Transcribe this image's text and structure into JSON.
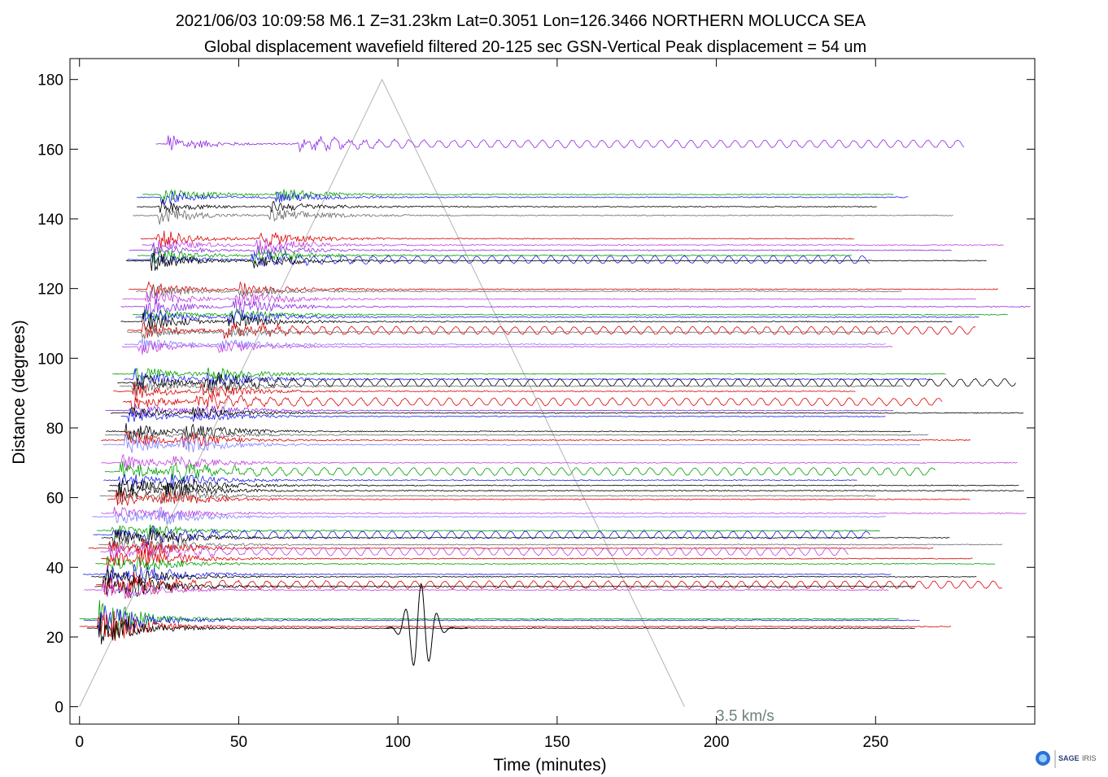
{
  "chart_data": {
    "type": "line",
    "title": "2021/06/03  10:09:58  M6.1  Z=31.23km  Lat=0.3051 Lon=126.3466  NORTHERN MOLUCCA SEA",
    "subtitle": "Global displacement wavefield     filtered 20-125 sec    GSN-Vertical    Peak displacement =  54 um",
    "xlabel": "Time (minutes)",
    "ylabel": "Distance (degrees)",
    "xlim": [
      -3,
      300
    ],
    "ylim": [
      -5,
      186
    ],
    "x_ticks": [
      0,
      50,
      100,
      150,
      200,
      250
    ],
    "y_ticks": [
      0,
      20,
      40,
      60,
      80,
      100,
      120,
      140,
      160,
      180
    ],
    "x_tick_labels": [
      "0",
      "50",
      "100",
      "150",
      "200",
      "250"
    ],
    "y_tick_labels": [
      "0",
      "20",
      "40",
      "60",
      "80",
      "100",
      "120",
      "140",
      "160",
      "180"
    ],
    "grid": false,
    "annotation": {
      "text": "3.5 km/s",
      "x": 200,
      "y": -2,
      "color": "#708080"
    },
    "reference_line": {
      "name": "3.5 km/s",
      "points": [
        [
          0,
          0
        ],
        [
          95,
          180
        ],
        [
          190,
          0
        ]
      ],
      "color": "#b4b4b4"
    },
    "trace_colors": [
      "#8a2be2",
      "#00a000",
      "#000000",
      "#696969",
      "#dd0000",
      "#1f1fee",
      "#c040e0",
      "#8080ff"
    ],
    "traces": [
      {
        "distance": 161.5,
        "color": "#8a2be2"
      },
      {
        "distance": 147.0,
        "color": "#00a000"
      },
      {
        "distance": 146.2,
        "color": "#1f1fee"
      },
      {
        "distance": 143.5,
        "color": "#000000"
      },
      {
        "distance": 141.0,
        "color": "#696969"
      },
      {
        "distance": 134.3,
        "color": "#dd0000"
      },
      {
        "distance": 132.5,
        "color": "#c040e0"
      },
      {
        "distance": 131.0,
        "color": "#8a2be2"
      },
      {
        "distance": 129.5,
        "color": "#00a000"
      },
      {
        "distance": 128.3,
        "color": "#1f1fee"
      },
      {
        "distance": 128.0,
        "color": "#000000"
      },
      {
        "distance": 119.8,
        "color": "#dd0000"
      },
      {
        "distance": 119.2,
        "color": "#696969"
      },
      {
        "distance": 117.0,
        "color": "#c040e0"
      },
      {
        "distance": 114.8,
        "color": "#8a2be2"
      },
      {
        "distance": 112.5,
        "color": "#00a000"
      },
      {
        "distance": 111.8,
        "color": "#1f1fee"
      },
      {
        "distance": 110.5,
        "color": "#000000"
      },
      {
        "distance": 108.0,
        "color": "#dd0000"
      },
      {
        "distance": 107.5,
        "color": "#696969"
      },
      {
        "distance": 104.0,
        "color": "#8080ff"
      },
      {
        "distance": 103.3,
        "color": "#c040e0"
      },
      {
        "distance": 95.5,
        "color": "#00a000"
      },
      {
        "distance": 94.0,
        "color": "#1f1fee"
      },
      {
        "distance": 93.0,
        "color": "#000000"
      },
      {
        "distance": 92.0,
        "color": "#696969"
      },
      {
        "distance": 90.5,
        "color": "#dd0000"
      },
      {
        "distance": 87.5,
        "color": "#dd0000"
      },
      {
        "distance": 85.0,
        "color": "#8a2be2"
      },
      {
        "distance": 84.3,
        "color": "#000000"
      },
      {
        "distance": 83.3,
        "color": "#1f1fee"
      },
      {
        "distance": 79.0,
        "color": "#000000"
      },
      {
        "distance": 78.0,
        "color": "#696969"
      },
      {
        "distance": 76.5,
        "color": "#dd0000"
      },
      {
        "distance": 75.2,
        "color": "#8080ff"
      },
      {
        "distance": 70.0,
        "color": "#c040e0"
      },
      {
        "distance": 67.5,
        "color": "#00a000"
      },
      {
        "distance": 65.0,
        "color": "#1f1fee"
      },
      {
        "distance": 63.5,
        "color": "#000000"
      },
      {
        "distance": 62.0,
        "color": "#000000"
      },
      {
        "distance": 60.5,
        "color": "#696969"
      },
      {
        "distance": 59.5,
        "color": "#dd0000"
      },
      {
        "distance": 55.5,
        "color": "#c040e0"
      },
      {
        "distance": 54.5,
        "color": "#8080ff"
      },
      {
        "distance": 50.5,
        "color": "#00a000"
      },
      {
        "distance": 49.3,
        "color": "#1f1fee"
      },
      {
        "distance": 48.5,
        "color": "#000000"
      },
      {
        "distance": 46.5,
        "color": "#696969"
      },
      {
        "distance": 45.5,
        "color": "#dd0000"
      },
      {
        "distance": 44.5,
        "color": "#c040e0"
      },
      {
        "distance": 42.5,
        "color": "#dd0000"
      },
      {
        "distance": 41.0,
        "color": "#00a000"
      },
      {
        "distance": 38.0,
        "color": "#1f1fee"
      },
      {
        "distance": 37.3,
        "color": "#000000"
      },
      {
        "distance": 35.0,
        "color": "#dd0000"
      },
      {
        "distance": 34.5,
        "color": "#000000"
      },
      {
        "distance": 33.5,
        "color": "#c040e0"
      },
      {
        "distance": 25.2,
        "color": "#00a000"
      },
      {
        "distance": 24.8,
        "color": "#1f1fee"
      },
      {
        "distance": 23.0,
        "color": "#dd0000"
      },
      {
        "distance": 22.5,
        "color": "#000000"
      }
    ]
  },
  "logo": {
    "text_sage": "SAGE",
    "text_iris": "IRIS"
  }
}
